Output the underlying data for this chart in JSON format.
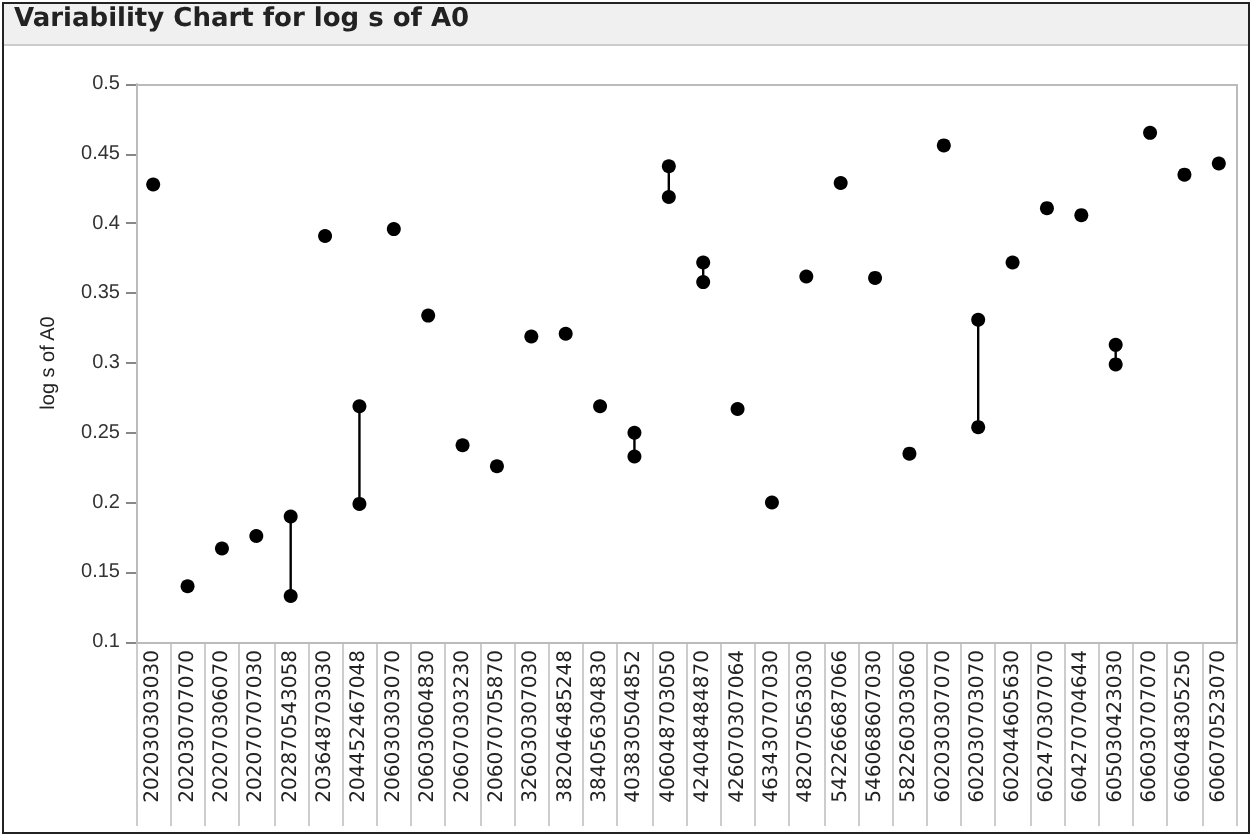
{
  "chart_data": {
    "type": "scatter",
    "title": "Variability Chart for log s of A0",
    "ylabel": "log s of A0",
    "categories": [
      "202030303030",
      "202030707070",
      "202070306070",
      "202070707030",
      "202870543058",
      "203648703030",
      "204452467048",
      "206030303070",
      "206030604830",
      "206070303230",
      "206070705870",
      "326030307030",
      "382046485248",
      "384056304830",
      "403830504852",
      "406048703050",
      "424048484870",
      "426070307064",
      "463430707030",
      "482070563030",
      "542266687066",
      "546068607030",
      "582260303060",
      "602030307070",
      "602030703070",
      "602044605630",
      "602470307070",
      "604270704644",
      "605030423030",
      "606030707070",
      "606048305250",
      "606070523070"
    ],
    "series": [
      {
        "color": "#000000",
        "values": [
          0.428,
          0.14,
          0.167,
          0.176,
          null,
          0.391,
          null,
          0.396,
          0.334,
          0.241,
          0.226,
          0.319,
          0.321,
          0.269,
          null,
          null,
          null,
          0.267,
          0.2,
          0.362,
          0.429,
          0.361,
          0.235,
          0.456,
          null,
          0.372,
          0.411,
          0.406,
          null,
          0.465,
          0.435,
          0.443
        ]
      },
      {
        "type": "line",
        "color": "#000000",
        "x": [
          "202870543058",
          "202870543058"
        ],
        "values": [
          0.133,
          0.19
        ]
      },
      {
        "type": "line",
        "color": "#000000",
        "x": [
          "204452467048",
          "204452467048"
        ],
        "values": [
          0.199,
          0.269
        ]
      },
      {
        "type": "line",
        "color": "#000000",
        "x": [
          "403830504852",
          "403830504852"
        ],
        "values": [
          0.233,
          0.25
        ]
      },
      {
        "type": "line",
        "color": "#000000",
        "x": [
          "406048703050",
          "406048703050"
        ],
        "values": [
          0.419,
          0.441
        ]
      },
      {
        "type": "line",
        "color": "#000000",
        "x": [
          "424048484870",
          "424048484870"
        ],
        "values": [
          0.358,
          0.372
        ]
      },
      {
        "type": "line",
        "color": "#000000",
        "x": [
          "602030703070",
          "602030703070"
        ],
        "values": [
          0.254,
          0.331
        ]
      },
      {
        "type": "line",
        "color": "#000000",
        "x": [
          "605030423030",
          "605030423030"
        ],
        "values": [
          0.299,
          0.313
        ]
      }
    ],
    "ylim": [
      0.1,
      0.5
    ],
    "yticks": [
      0.1,
      0.15,
      0.2,
      0.25,
      0.3,
      0.35,
      0.4,
      0.45,
      0.5
    ],
    "grid": false,
    "marker": "circle",
    "line_style": "solid"
  }
}
